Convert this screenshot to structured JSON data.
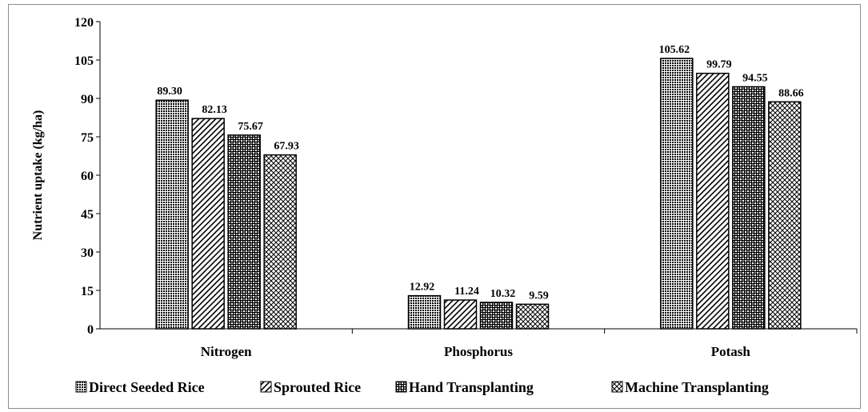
{
  "chart_data": {
    "type": "bar",
    "categories": [
      "Nitrogen",
      "Phosphorus",
      "Potash"
    ],
    "series": [
      {
        "name": "Direct Seeded Rice",
        "values": [
          89.3,
          12.92,
          105.62
        ],
        "labels": [
          "89.30",
          "12.92",
          "105.62"
        ],
        "pattern": "dense-dots"
      },
      {
        "name": "Sprouted Rice",
        "values": [
          82.13,
          11.24,
          99.79
        ],
        "labels": [
          "82.13",
          "11.24",
          "99.79"
        ],
        "pattern": "diagonal-lines"
      },
      {
        "name": "Hand Transplanting",
        "values": [
          75.67,
          10.32,
          94.55
        ],
        "labels": [
          "75.67",
          "10.32",
          "94.55"
        ],
        "pattern": "checker"
      },
      {
        "name": "Machine Transplanting",
        "values": [
          67.93,
          9.59,
          88.66
        ],
        "labels": [
          "67.93",
          "9.59",
          "88.66"
        ],
        "pattern": "crosshatch"
      }
    ],
    "ylabel": "Nutrient uptake (kg/ha)",
    "xlabel": "",
    "ylim": [
      0,
      120
    ],
    "yticks": [
      "0",
      "15",
      "30",
      "45",
      "60",
      "75",
      "90",
      "105",
      "120"
    ],
    "grid": false,
    "legend_position": "bottom"
  }
}
